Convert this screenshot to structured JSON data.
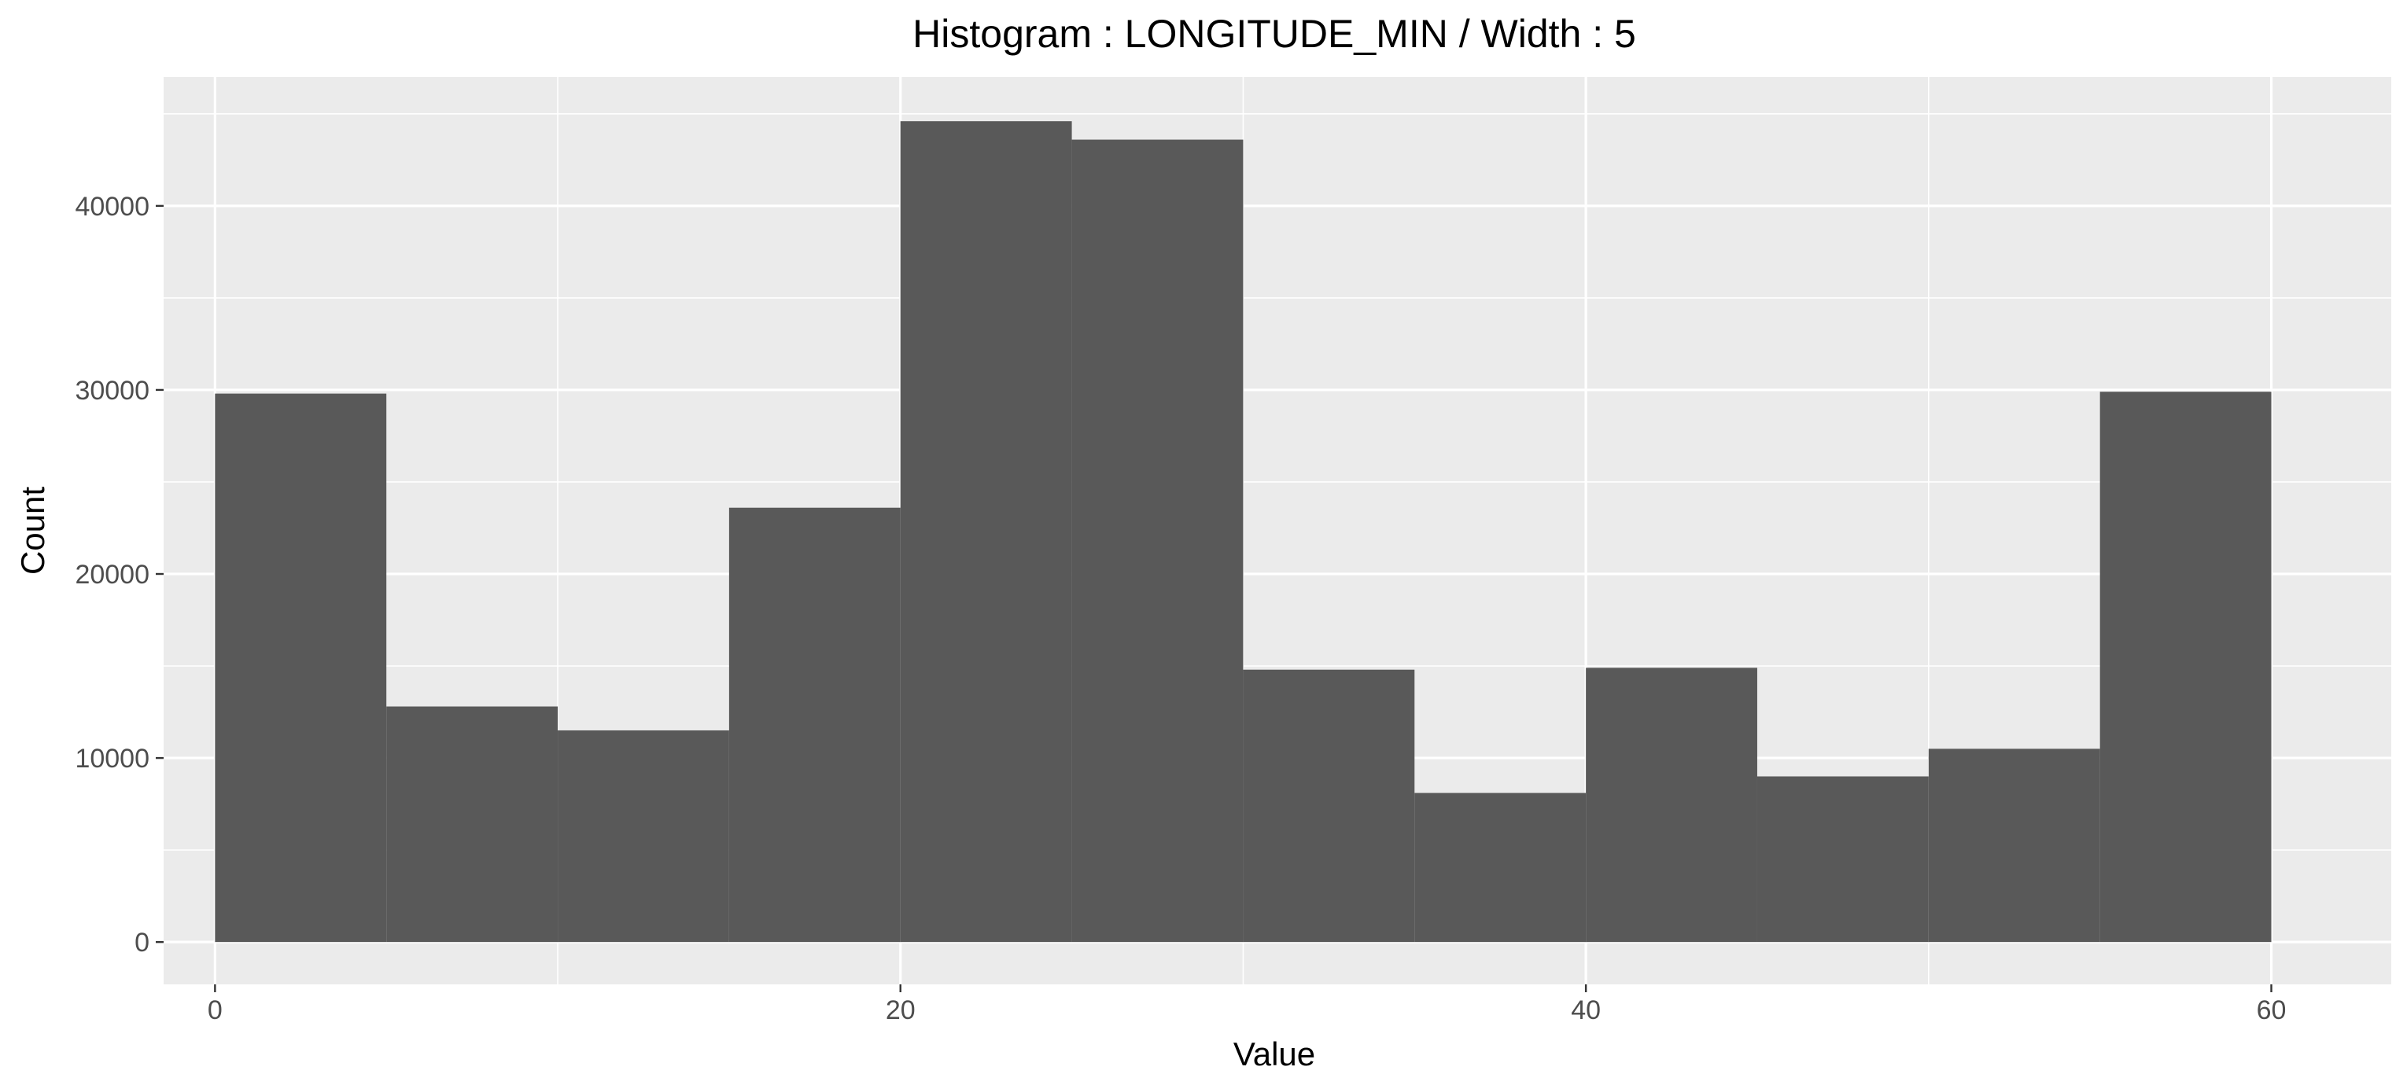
{
  "chart_data": {
    "type": "bar",
    "title": "Histogram : LONGITUDE_MIN / Width : 5",
    "xlabel": "Value",
    "ylabel": "Count",
    "bin_width": 5,
    "bins": [
      {
        "start": 0,
        "end": 5,
        "count": 29800
      },
      {
        "start": 5,
        "end": 10,
        "count": 12800
      },
      {
        "start": 10,
        "end": 15,
        "count": 11500
      },
      {
        "start": 15,
        "end": 20,
        "count": 23600
      },
      {
        "start": 20,
        "end": 25,
        "count": 44600
      },
      {
        "start": 25,
        "end": 30,
        "count": 43600
      },
      {
        "start": 30,
        "end": 35,
        "count": 14800
      },
      {
        "start": 35,
        "end": 40,
        "count": 8100
      },
      {
        "start": 40,
        "end": 45,
        "count": 14900
      },
      {
        "start": 45,
        "end": 50,
        "count": 9000
      },
      {
        "start": 50,
        "end": 55,
        "count": 10500
      },
      {
        "start": 55,
        "end": 60,
        "count": 29900
      }
    ],
    "xlim": [
      -1.5,
      63.5
    ],
    "ylim": [
      -2300,
      47000
    ],
    "x_ticks": [
      0,
      20,
      40,
      60
    ],
    "x_tick_labels": [
      "0",
      "20",
      "40",
      "60"
    ],
    "y_ticks": [
      0,
      10000,
      20000,
      30000,
      40000
    ],
    "y_tick_labels": [
      "0",
      "10000",
      "20000",
      "30000",
      "40000"
    ],
    "grid": true,
    "colors": {
      "panel_background": "#ebebeb",
      "grid_major": "#ffffff",
      "bar_fill": "#595959",
      "tick_text": "#4d4d4d",
      "tick_mark": "#333333",
      "text": "#000000"
    }
  }
}
